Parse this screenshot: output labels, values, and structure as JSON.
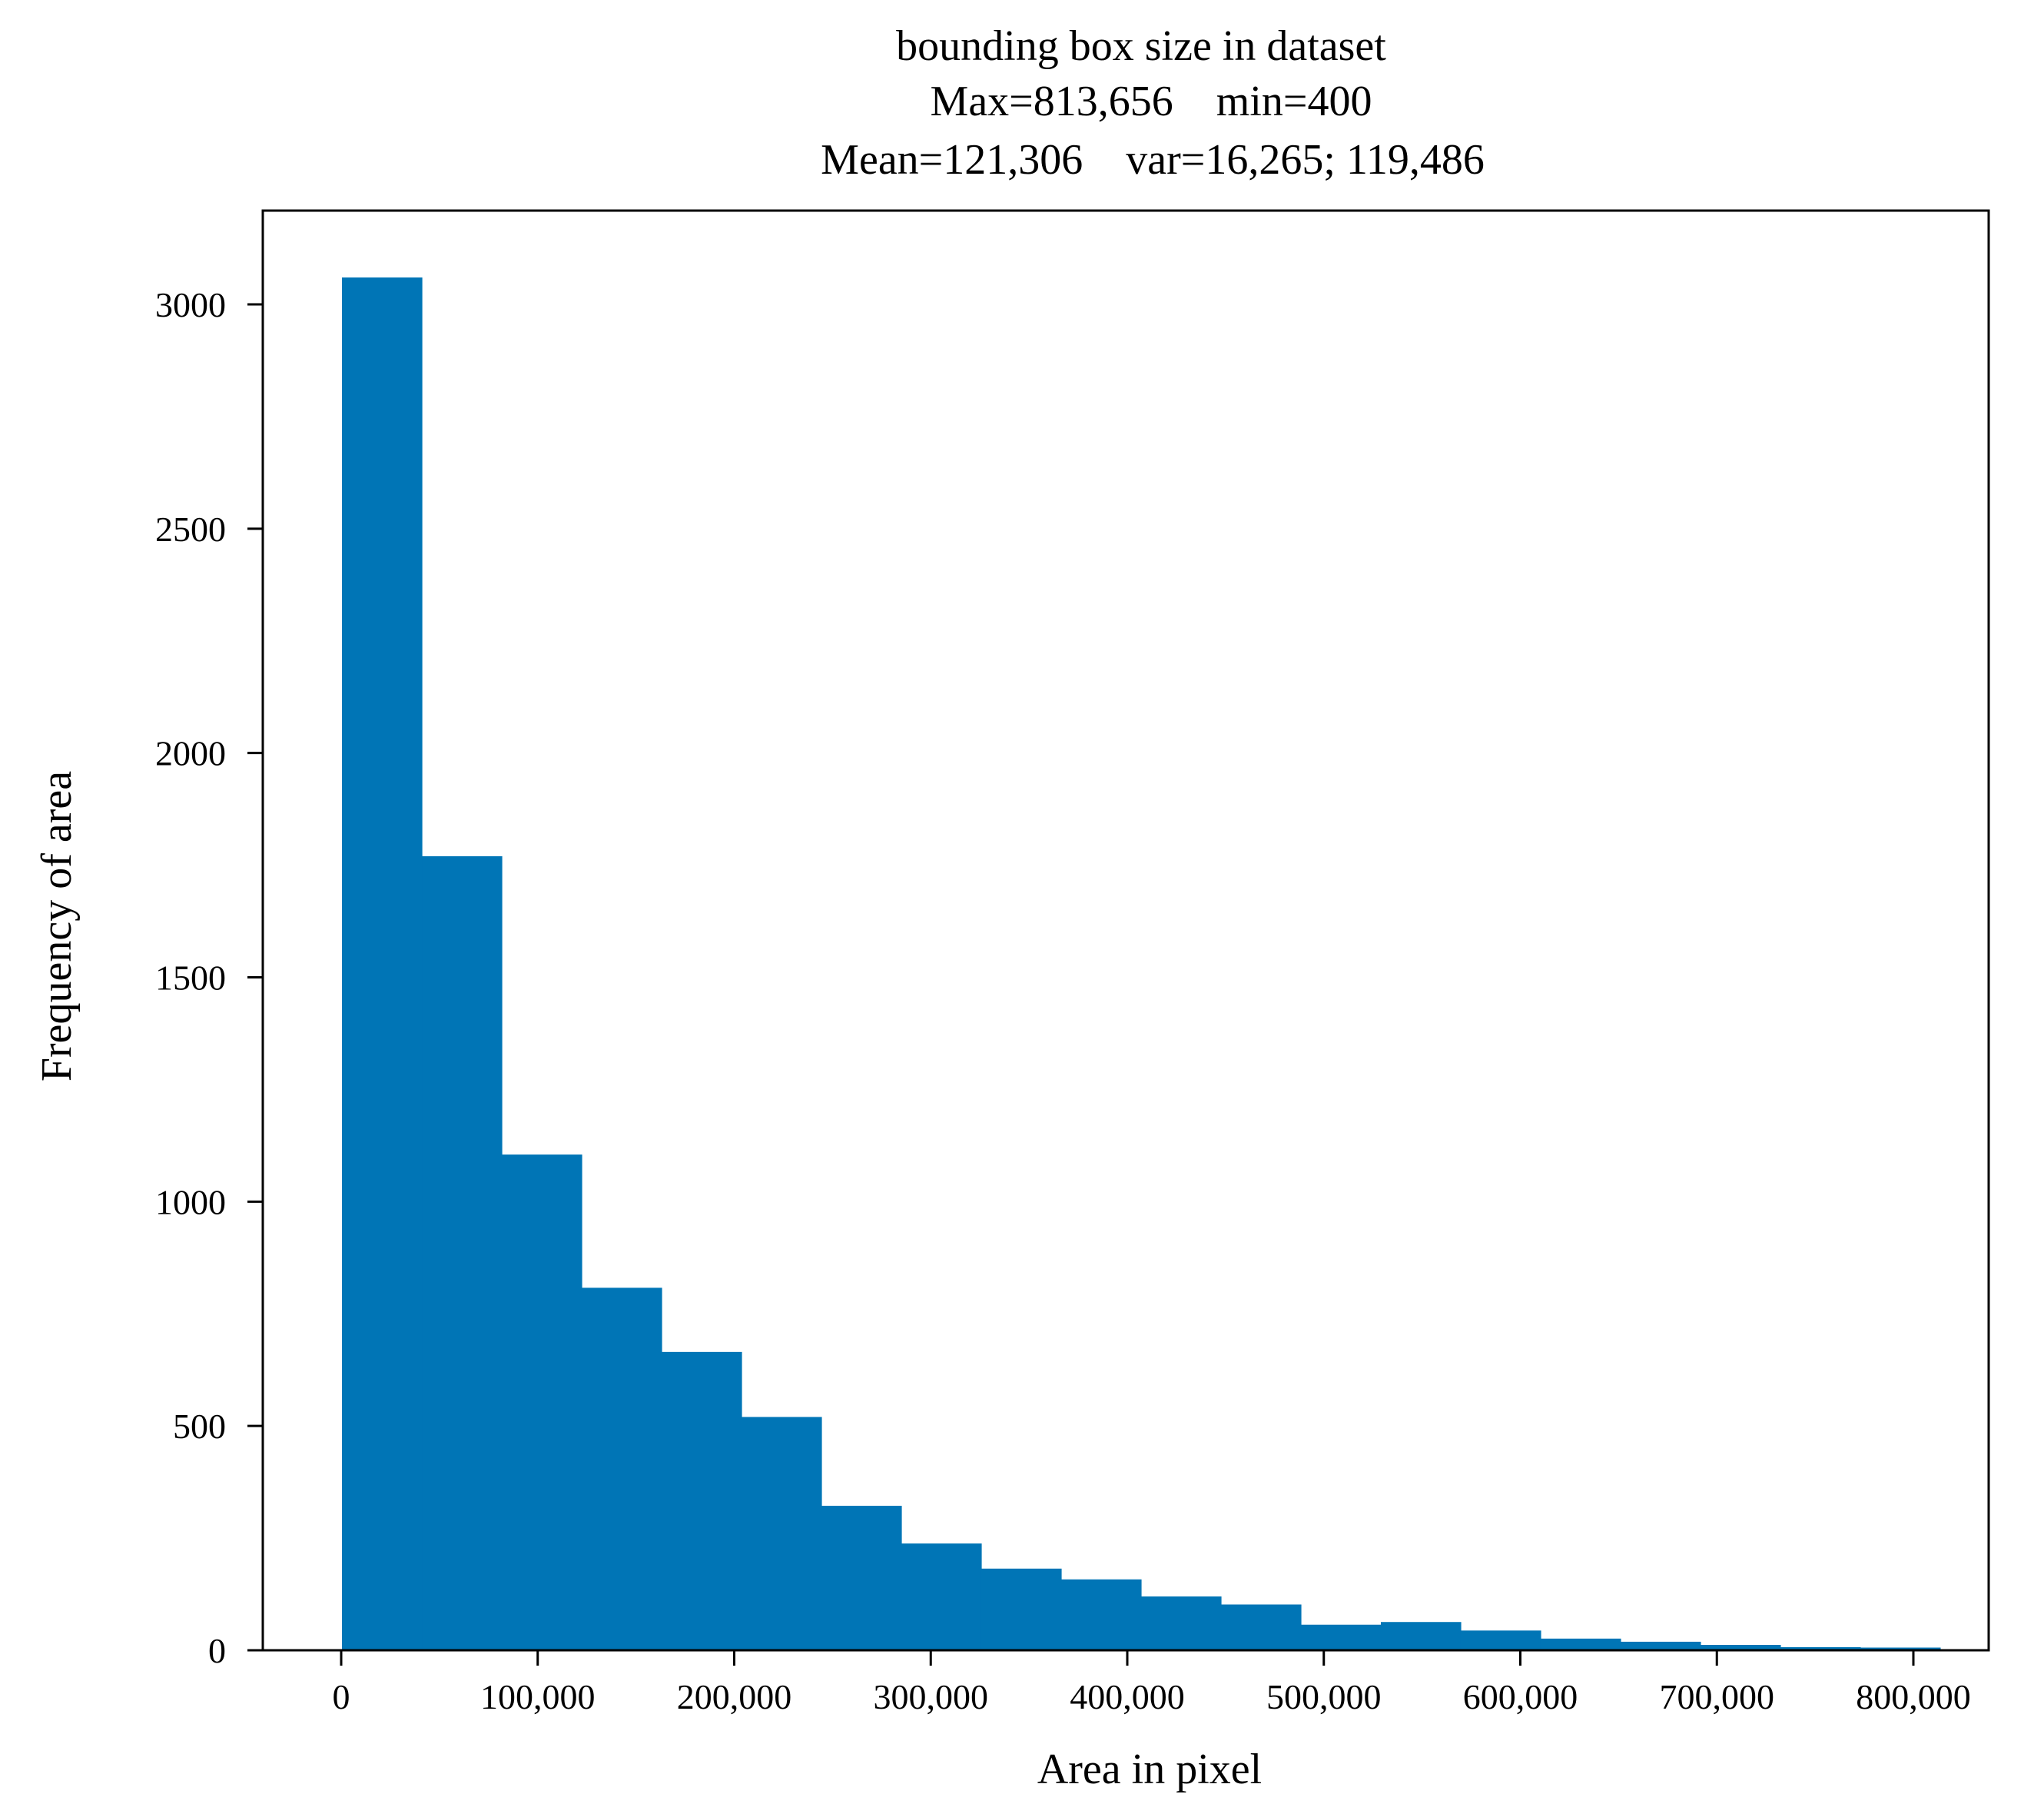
{
  "chart_data": {
    "type": "bar",
    "title_lines": [
      "bounding box size in dataset",
      "Max=813,656    min=400",
      "Mean=121,306    var=16,265; 119,486"
    ],
    "xlabel": "Area in pixel",
    "ylabel": "Frequency of area",
    "xlim": [
      -40000,
      850000
    ],
    "ylim": [
      0,
      3200
    ],
    "x_ticks": [
      0,
      100000,
      200000,
      300000,
      400000,
      500000,
      600000,
      700000,
      800000
    ],
    "x_tick_labels": [
      "0",
      "100,000",
      "200,000",
      "300,000",
      "400,000",
      "500,000",
      "600,000",
      "700,000",
      "800,000"
    ],
    "y_ticks": [
      0,
      500,
      1000,
      1500,
      2000,
      2500,
      3000
    ],
    "y_tick_labels": [
      "0",
      "500",
      "1000",
      "1500",
      "2000",
      "2500",
      "3000"
    ],
    "bar_color": "#0075B6",
    "bins": [
      {
        "start": 400,
        "end": 41063,
        "count": 3060
      },
      {
        "start": 41063,
        "end": 81726,
        "count": 1770
      },
      {
        "start": 81726,
        "end": 122389,
        "count": 1105
      },
      {
        "start": 122389,
        "end": 163052,
        "count": 808
      },
      {
        "start": 163052,
        "end": 203715,
        "count": 665
      },
      {
        "start": 203715,
        "end": 244378,
        "count": 520
      },
      {
        "start": 244378,
        "end": 285041,
        "count": 322
      },
      {
        "start": 285041,
        "end": 325704,
        "count": 238
      },
      {
        "start": 325704,
        "end": 366367,
        "count": 182
      },
      {
        "start": 366367,
        "end": 407030,
        "count": 158
      },
      {
        "start": 407030,
        "end": 447693,
        "count": 120
      },
      {
        "start": 447693,
        "end": 488356,
        "count": 102
      },
      {
        "start": 488356,
        "end": 529019,
        "count": 57
      },
      {
        "start": 529019,
        "end": 569682,
        "count": 63
      },
      {
        "start": 569682,
        "end": 610345,
        "count": 44
      },
      {
        "start": 610345,
        "end": 651008,
        "count": 26
      },
      {
        "start": 651008,
        "end": 691671,
        "count": 19
      },
      {
        "start": 691671,
        "end": 732334,
        "count": 12
      },
      {
        "start": 732334,
        "end": 772997,
        "count": 7
      },
      {
        "start": 772997,
        "end": 813656,
        "count": 6
      }
    ],
    "grid": false,
    "legend": "none"
  }
}
